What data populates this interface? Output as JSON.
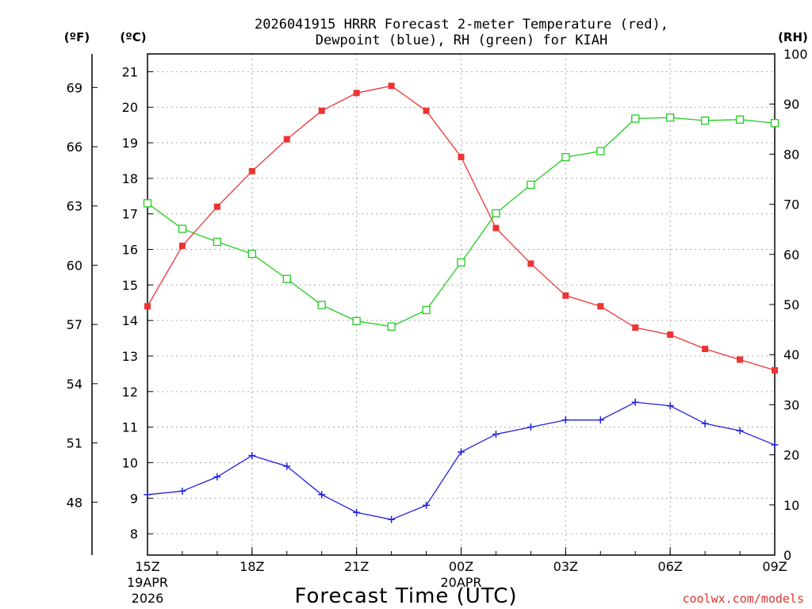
{
  "chart_data": {
    "type": "line",
    "title": [
      "2026041915 HRRR Forecast 2-meter Temperature (red),",
      "Dewpoint (blue), RH (green) for KIAH"
    ],
    "xlabel": "Forecast Time (UTC)",
    "watermark": "coolwx.com/models",
    "unit_labels": {
      "fahrenheit": "(ºF)",
      "celsius": "(ºC)",
      "rh": "(RH)"
    },
    "x_hours": [
      15,
      16,
      17,
      18,
      19,
      20,
      21,
      22,
      23,
      24,
      25,
      26,
      27,
      28,
      29,
      30,
      31,
      32,
      33
    ],
    "x_ticks": [
      {
        "hour": 15,
        "label": "15Z",
        "sub": [
          "19APR",
          "2026"
        ]
      },
      {
        "hour": 18,
        "label": "18Z",
        "sub": []
      },
      {
        "hour": 21,
        "label": "21Z",
        "sub": []
      },
      {
        "hour": 24,
        "label": "00Z",
        "sub": [
          "20APR"
        ]
      },
      {
        "hour": 27,
        "label": "03Z",
        "sub": []
      },
      {
        "hour": 30,
        "label": "06Z",
        "sub": []
      },
      {
        "hour": 33,
        "label": "09Z",
        "sub": []
      }
    ],
    "xlim": [
      15,
      33
    ],
    "celsius_axis": {
      "ylim": [
        7.4,
        21.5
      ],
      "ticks": [
        8,
        9,
        10,
        11,
        12,
        13,
        14,
        15,
        16,
        17,
        18,
        19,
        20,
        21
      ]
    },
    "fahrenheit_axis": {
      "ticks": [
        48,
        51,
        54,
        57,
        60,
        63,
        66,
        69
      ]
    },
    "rh_axis": {
      "ylim": [
        0,
        100
      ],
      "ticks": [
        0,
        10,
        20,
        30,
        40,
        50,
        60,
        70,
        80,
        90,
        100
      ]
    },
    "series": [
      {
        "name": "2-meter Temperature",
        "axis": "celsius",
        "color": "#ee3333",
        "marker": "filled-square",
        "values": [
          14.4,
          16.1,
          17.2,
          18.2,
          19.1,
          19.9,
          20.4,
          20.6,
          19.9,
          18.6,
          16.6,
          15.6,
          14.7,
          14.4,
          13.8,
          13.6,
          13.2,
          12.9,
          12.6
        ]
      },
      {
        "name": "Dewpoint",
        "axis": "celsius",
        "color": "#2222dd",
        "marker": "plus",
        "values": [
          9.1,
          9.2,
          9.6,
          10.2,
          9.9,
          9.1,
          8.6,
          8.4,
          8.8,
          10.3,
          10.8,
          11.0,
          11.2,
          11.2,
          11.7,
          11.6,
          11.1,
          10.9,
          10.5
        ]
      },
      {
        "name": "RH",
        "axis": "rh",
        "color": "#22cc22",
        "marker": "open-square",
        "values": [
          70.2,
          65.1,
          62.5,
          60.1,
          55.1,
          49.9,
          46.7,
          45.6,
          48.9,
          58.4,
          68.2,
          73.9,
          79.4,
          80.6,
          87.1,
          87.3,
          86.7,
          86.9,
          86.2
        ]
      }
    ]
  }
}
